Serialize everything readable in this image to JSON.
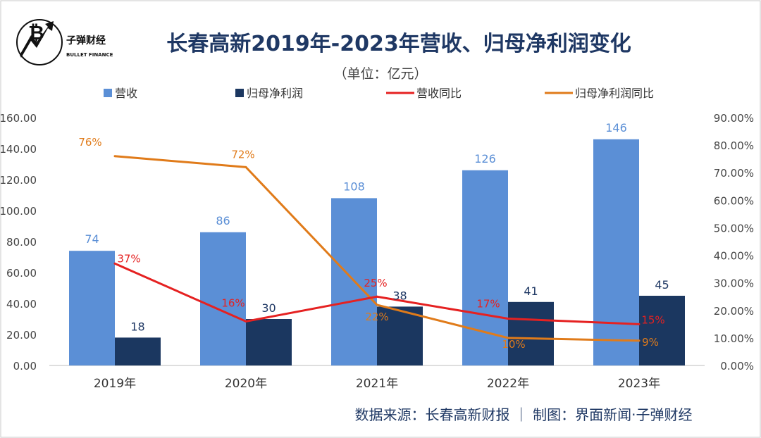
{
  "logo": {
    "name": "子弹财经",
    "tagline": "BULLET FINANCE"
  },
  "footer": {
    "source": "数据来源：长春高新财报  ｜  制图：界面新闻·子弹财经"
  },
  "colors": {
    "revenue_bar": "#5b8fd6",
    "profit_bar": "#1b3760",
    "revenue_yoy_line": "#e52121",
    "profit_yoy_line": "#e07b1a",
    "title": "#1f3864",
    "revenue_label": "#5b8fd6",
    "profit_label": "#1f3864",
    "axis_text": "#444444",
    "gridline": "#e6e6e6"
  },
  "chart_data": {
    "type": "bar",
    "title": "长春高新2019年-2023年营收、归母净利润变化",
    "subtitle": "（单位：亿元）",
    "categories": [
      "2019年",
      "2020年",
      "2021年",
      "2022年",
      "2023年"
    ],
    "series": [
      {
        "name": "营收",
        "kind": "bar",
        "axis": "left",
        "values": [
          74,
          86,
          108,
          126,
          146
        ],
        "labels": [
          "74",
          "86",
          "108",
          "126",
          "146"
        ]
      },
      {
        "name": "归母净利润",
        "kind": "bar",
        "axis": "left",
        "values": [
          18,
          30,
          38,
          41,
          45
        ],
        "labels": [
          "18",
          "30",
          "38",
          "41",
          "45"
        ]
      },
      {
        "name": "营收同比",
        "kind": "line",
        "axis": "right",
        "values": [
          37,
          16,
          25,
          17,
          15
        ],
        "labels": [
          "37%",
          "16%",
          "25%",
          "17%",
          "15%"
        ]
      },
      {
        "name": "归母净利润同比",
        "kind": "line",
        "axis": "right",
        "values": [
          76,
          72,
          22,
          10,
          9
        ],
        "labels": [
          "76%",
          "72%",
          "22%",
          "10%",
          "9%"
        ]
      }
    ],
    "y_left": {
      "min": 0,
      "max": 160,
      "step": 20,
      "tick_labels": [
        "0.00",
        "20.00",
        "40.00",
        "60.00",
        "80.00",
        "100.00",
        "120.00",
        "140.00",
        "160.00"
      ]
    },
    "y_right": {
      "min": 0,
      "max": 90,
      "step": 10,
      "tick_labels": [
        "0.00%",
        "10.00%",
        "20.00%",
        "30.00%",
        "40.00%",
        "50.00%",
        "60.00%",
        "70.00%",
        "80.00%",
        "90.00%"
      ]
    },
    "legend": "top",
    "grid": false
  }
}
